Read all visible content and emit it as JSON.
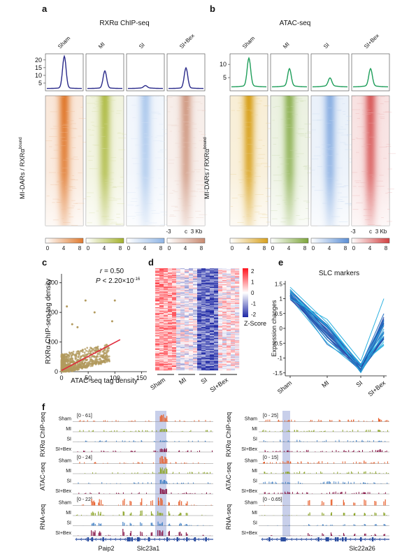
{
  "panels": {
    "a": {
      "letter": "a",
      "title": "RXRα ChIP-seq",
      "conditions": [
        "Sham",
        "MI",
        "SI",
        "SI+Bex"
      ],
      "yticks": [
        "20",
        "15",
        "10",
        "5"
      ],
      "ylabel_main": "MI-DARs / RXRα",
      "ylabel_sup": "bound",
      "xaxis": [
        "-3",
        "c",
        "3 Kb"
      ],
      "colorbar_ticks": [
        "0",
        "4",
        "8"
      ],
      "colors": [
        "#e07a2e",
        "#a4b22c",
        "#8fb5e6",
        "#c98a70"
      ],
      "line_color": "#2a2a8a",
      "profile_peaks": [
        22,
        12.5,
        3,
        14.5
      ]
    },
    "b": {
      "letter": "b",
      "title": "ATAC-seq",
      "conditions": [
        "Sham",
        "MI",
        "SI",
        "SI+Bex"
      ],
      "yticks": [
        "10",
        "5"
      ],
      "ylabel_main": "MI-DARs / RXRα",
      "ylabel_sup": "bound",
      "xaxis": [
        "-3",
        "c",
        "3 Kb"
      ],
      "colorbar_ticks": [
        "0",
        "4",
        "8"
      ],
      "colors": [
        "#d9a21e",
        "#7da63a",
        "#5b8fd6",
        "#d24040"
      ],
      "line_color": "#1e9e5a",
      "profile_peaks": [
        12,
        8,
        4.5,
        8
      ]
    },
    "c": {
      "letter": "c",
      "r_label": "r",
      "r_value": " = 0.50",
      "p_label": "P",
      "p_value": " < 2.20×10",
      "p_exp": "-16",
      "xlabel": "ATAC-seq tag density",
      "ylabel": "RXRα ChIP-seq tag density",
      "xticks": [
        "0",
        "50",
        "100",
        "150"
      ],
      "yticks": [
        "0",
        "100",
        "200",
        "300"
      ],
      "dot_color": "#b29a5e",
      "fit_color": "#e0293b"
    },
    "d": {
      "letter": "d",
      "legend_ticks": [
        "2",
        "1",
        "0",
        "-1",
        "-2"
      ],
      "legend_title": "Z-Score",
      "conditions": [
        "Sham",
        "MI",
        "SI",
        "SI+Bex"
      ]
    },
    "e": {
      "letter": "e",
      "title": "SLC markers",
      "ylabel": "Expression changes",
      "yticks": [
        "1.5",
        "1",
        "0.5",
        "0",
        "-0.5",
        "-1",
        "-1.5"
      ],
      "conditions": [
        "Sham",
        "MI",
        "SI",
        "SI+Bex"
      ]
    },
    "f": {
      "letter": "f",
      "conditions": [
        "Sham",
        "MI",
        "SI",
        "SI+Bex"
      ],
      "assays": [
        "RXRα ChIP-seq",
        "ATAC-seq",
        "RNA-seq"
      ],
      "colors": [
        "#e8612e",
        "#8ea62c",
        "#4a86c8",
        "#8a1a4a"
      ],
      "left": {
        "ranges": [
          "[0 - 61]",
          "[0 - 24]",
          "[0 - 22]"
        ],
        "genes": [
          "Paip2",
          "Slc23a1"
        ]
      },
      "right": {
        "ranges": [
          "[0 - 25]",
          "[0 - 15]",
          "[0 - 0.65]"
        ],
        "genes": [
          "Slc22a26"
        ]
      }
    }
  }
}
